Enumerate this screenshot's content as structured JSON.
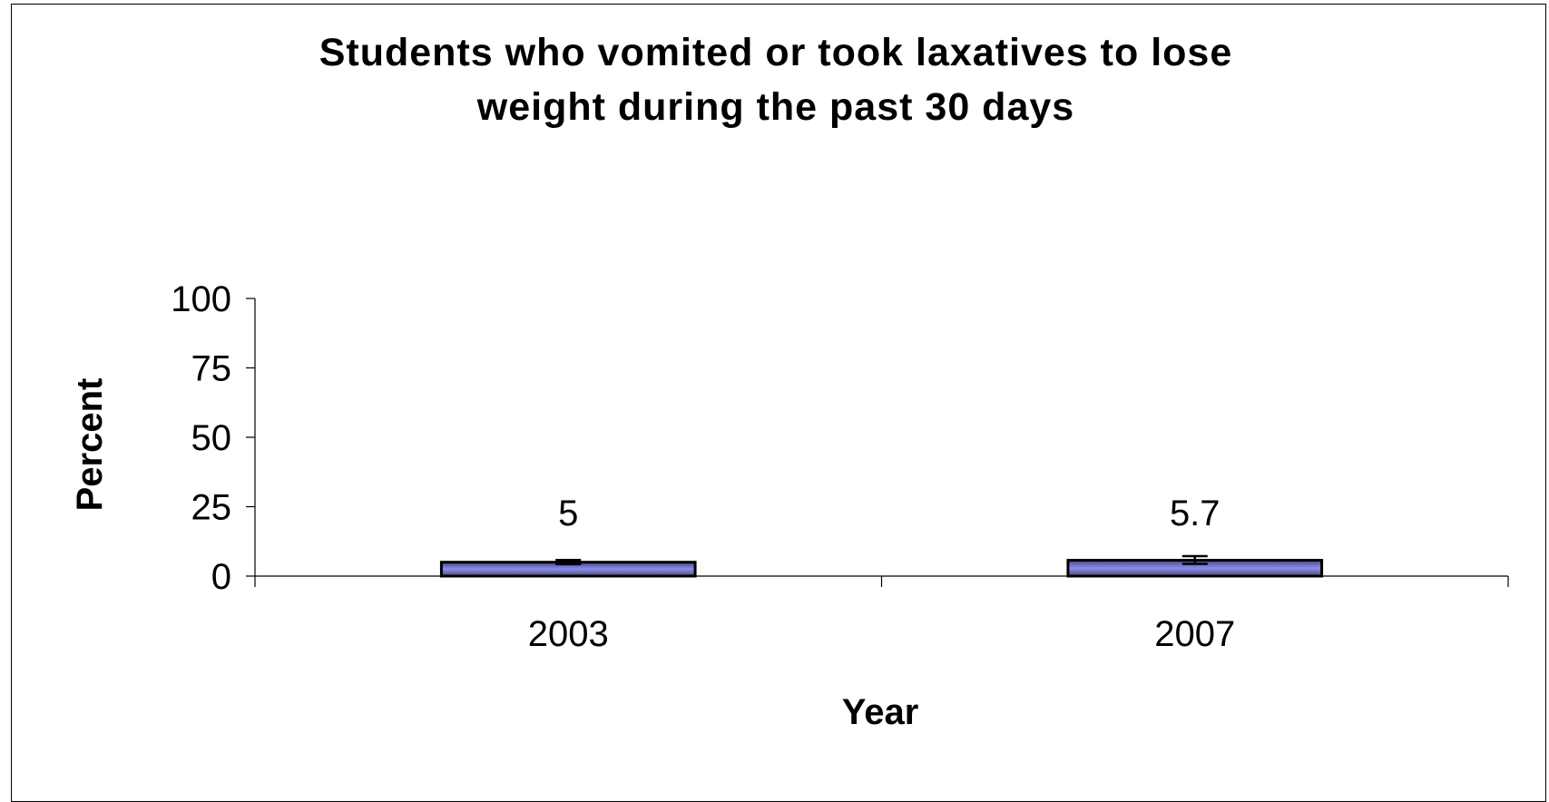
{
  "chart_data": {
    "type": "bar",
    "title_lines": [
      "Students who vomited or took laxatives to lose",
      "weight during the past 30 days"
    ],
    "xlabel": "Year",
    "ylabel": "Percent",
    "categories": [
      "2003",
      "2007"
    ],
    "values": [
      5,
      5.7
    ],
    "data_labels": [
      "5",
      "5.7"
    ],
    "error_bars": [
      [
        4.3,
        5.8
      ],
      [
        4.4,
        7.2
      ]
    ],
    "ylim": [
      0,
      100
    ],
    "yticks": [
      "0",
      "25",
      "50",
      "75",
      "100"
    ],
    "grid": false,
    "legend": "none",
    "bar_color": "#8c8cf0",
    "bar_edge_color": "#000000",
    "bar_shade_color": "#4a4a7a"
  }
}
